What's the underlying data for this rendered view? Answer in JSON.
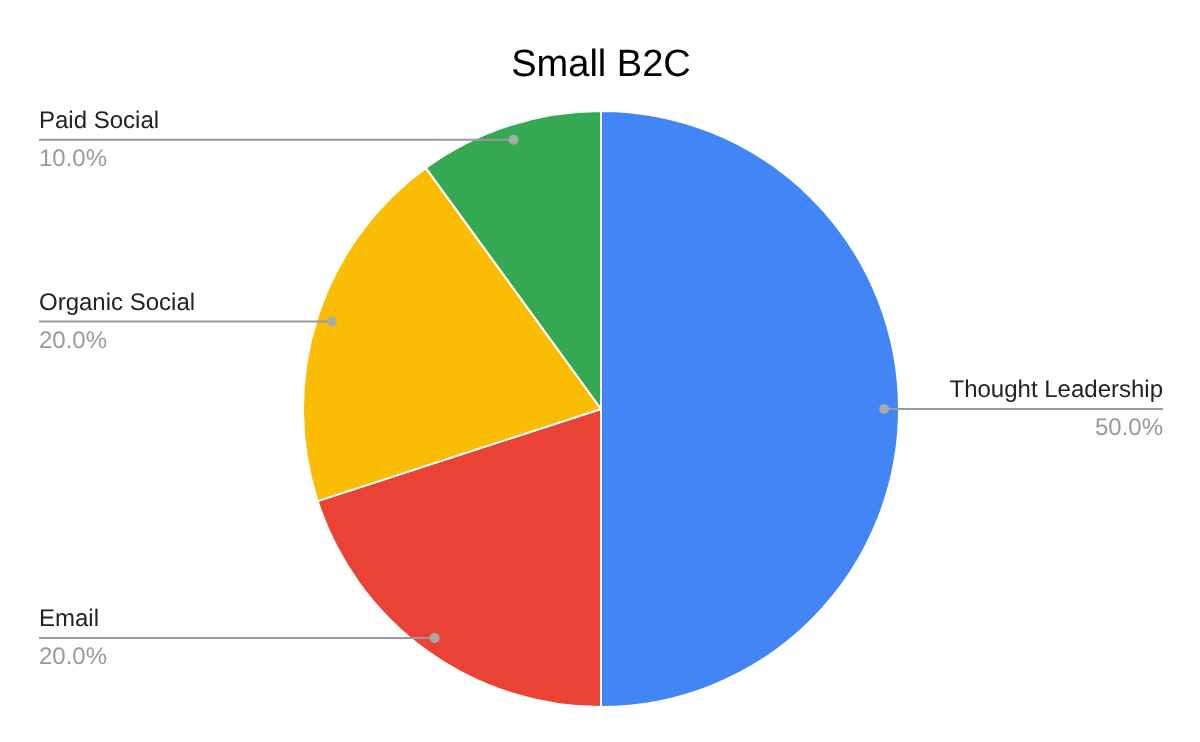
{
  "chart_data": {
    "type": "pie",
    "title": "Small B2C",
    "categories": [
      "Thought Leadership",
      "Email",
      "Organic Social",
      "Paid Social"
    ],
    "values": [
      50,
      20,
      20,
      10
    ],
    "colors": [
      "#4285f4",
      "#ea4335",
      "#fbbc04",
      "#34a853"
    ],
    "value_labels": [
      "50.0%",
      "20.0%",
      "20.0%",
      "10.0%"
    ]
  }
}
